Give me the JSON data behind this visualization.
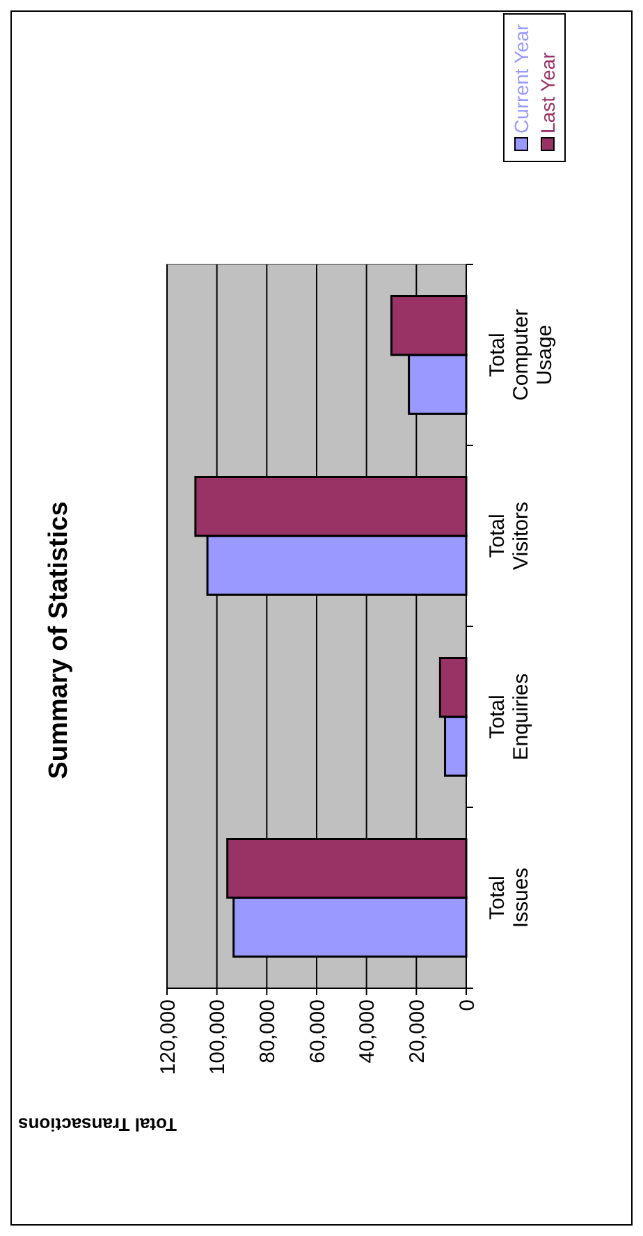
{
  "chart_data": {
    "type": "bar",
    "orientation": "horizontal",
    "title": "Summary of Statistics",
    "xlabel": "Total Transactions",
    "categories": [
      "Total Computer Usage",
      "Total Visitors",
      "Total Enquiries",
      "Total Issues"
    ],
    "series": [
      {
        "name": "Current Year",
        "color": "#9999ff",
        "values": [
          23000,
          103800,
          8500,
          93300
        ]
      },
      {
        "name": "Last Year",
        "color": "#993366",
        "values": [
          30000,
          108600,
          10500,
          95800
        ]
      }
    ],
    "xlim": [
      120000,
      0
    ],
    "xticks": [
      {
        "value": 120000,
        "label": "120,000"
      },
      {
        "value": 100000,
        "label": "100,000"
      },
      {
        "value": 80000,
        "label": "80,000"
      },
      {
        "value": 60000,
        "label": "60,000"
      },
      {
        "value": 40000,
        "label": "40,000"
      },
      {
        "value": 20000,
        "label": "20,000"
      },
      {
        "value": 0,
        "label": "0"
      }
    ],
    "grid": "x",
    "legend": "top right"
  }
}
